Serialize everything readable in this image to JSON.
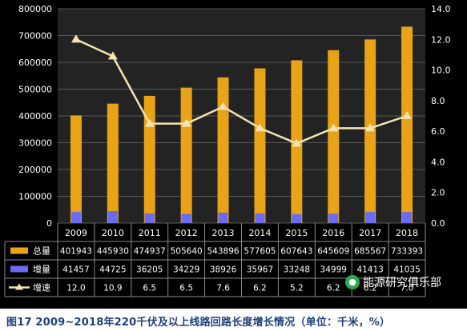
{
  "caption": "图17   2009~2018年220千伏及以上线路回路长度增长情况（单位：千米，%）",
  "watermark": "能源研究俱乐部",
  "chart_data": {
    "type": "bar+line",
    "categories": [
      "2009",
      "2010",
      "2011",
      "2012",
      "2013",
      "2014",
      "2015",
      "2016",
      "2017",
      "2018"
    ],
    "series": [
      {
        "name": "总量",
        "type": "bar",
        "axis": "left",
        "values": [
          401943,
          445930,
          474937,
          505640,
          543896,
          577605,
          607643,
          645609,
          685567,
          733393
        ],
        "labels": [
          "401943",
          "445930",
          "474937",
          "505640",
          "543896",
          "577605",
          "607643",
          "645609",
          "685567",
          "733393"
        ],
        "color": "#E8A317"
      },
      {
        "name": "增量",
        "type": "bar",
        "axis": "left",
        "values": [
          41457,
          44725,
          36205,
          34229,
          38926,
          35967,
          33248,
          34999,
          41413,
          41035
        ],
        "labels": [
          "41457",
          "44725",
          "36205",
          "34229",
          "38926",
          "35967",
          "33248",
          "34999",
          "41413",
          "41035"
        ],
        "color": "#6B6BF2"
      },
      {
        "name": "增速",
        "type": "line",
        "axis": "right",
        "values": [
          12.0,
          10.9,
          6.5,
          6.5,
          7.6,
          6.2,
          5.2,
          6.2,
          6.2,
          7.0
        ],
        "labels": [
          "12.0",
          "10.9",
          "6.5",
          "6.5",
          "7.6",
          "6.2",
          "5.2",
          "6.2",
          "6.2",
          "7.0"
        ],
        "color": "#F4E3B0"
      }
    ],
    "y_left": {
      "range": [
        0,
        800000
      ],
      "ticks": [
        "0",
        "100000",
        "200000",
        "300000",
        "400000",
        "500000",
        "600000",
        "700000",
        "800000"
      ]
    },
    "y_right": {
      "range": [
        0,
        14
      ],
      "ticks": [
        "0.0",
        "2.0",
        "4.0",
        "6.0",
        "8.0",
        "10.0",
        "12.0",
        "14.0"
      ]
    },
    "grid": true,
    "legend": "data-table-below"
  }
}
